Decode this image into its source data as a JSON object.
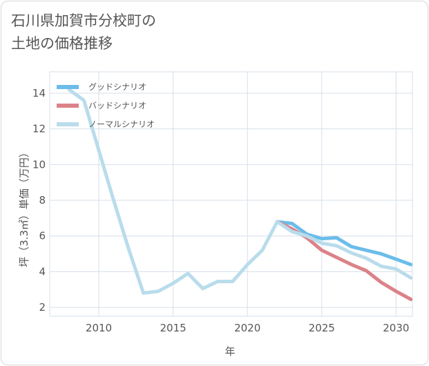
{
  "title_lines": [
    "石川県加賀市分校町の",
    "土地の価格推移"
  ],
  "chart_data": {
    "type": "line",
    "title": "石川県加賀市分校町の土地の価格推移",
    "xlabel": "年",
    "ylabel": "坪（3.3㎡）単価（万円）",
    "xlim": [
      2006.7,
      2031.1
    ],
    "ylim": [
      1.5,
      15.2
    ],
    "x_ticks": [
      2010,
      2015,
      2020,
      2025,
      2030
    ],
    "y_ticks": [
      2,
      4,
      6,
      8,
      10,
      12,
      14
    ],
    "grid": true,
    "legend_position": "top-left",
    "series": [
      {
        "name": "グッドシナリオ",
        "color": "#6bbcea",
        "x": [
          2022,
          2023,
          2024,
          2025,
          2026,
          2027,
          2028,
          2029,
          2030,
          2031
        ],
        "values": [
          6.8,
          6.7,
          6.1,
          5.85,
          5.9,
          5.4,
          5.2,
          5.0,
          4.7,
          4.4
        ]
      },
      {
        "name": "バッドシナリオ",
        "color": "#dc8289",
        "x": [
          2022,
          2023,
          2024,
          2025,
          2026,
          2027,
          2028,
          2029,
          2030,
          2031
        ],
        "values": [
          6.8,
          6.4,
          5.9,
          5.2,
          4.8,
          4.4,
          4.05,
          3.4,
          2.9,
          2.45
        ]
      },
      {
        "name": "ノーマルシナリオ",
        "color": "#b9dceb",
        "x": [
          2008,
          2009,
          2010,
          2011,
          2012,
          2013,
          2014,
          2015,
          2016,
          2017,
          2018,
          2019,
          2020,
          2021,
          2022,
          2023,
          2024,
          2025,
          2026,
          2027,
          2028,
          2029,
          2030,
          2031
        ],
        "values": [
          14.2,
          13.6,
          10.8,
          8.0,
          5.3,
          2.8,
          2.9,
          3.35,
          3.9,
          3.05,
          3.45,
          3.45,
          4.4,
          5.2,
          6.8,
          6.25,
          6.0,
          5.6,
          5.45,
          5.05,
          4.75,
          4.3,
          4.15,
          3.65
        ]
      }
    ]
  }
}
